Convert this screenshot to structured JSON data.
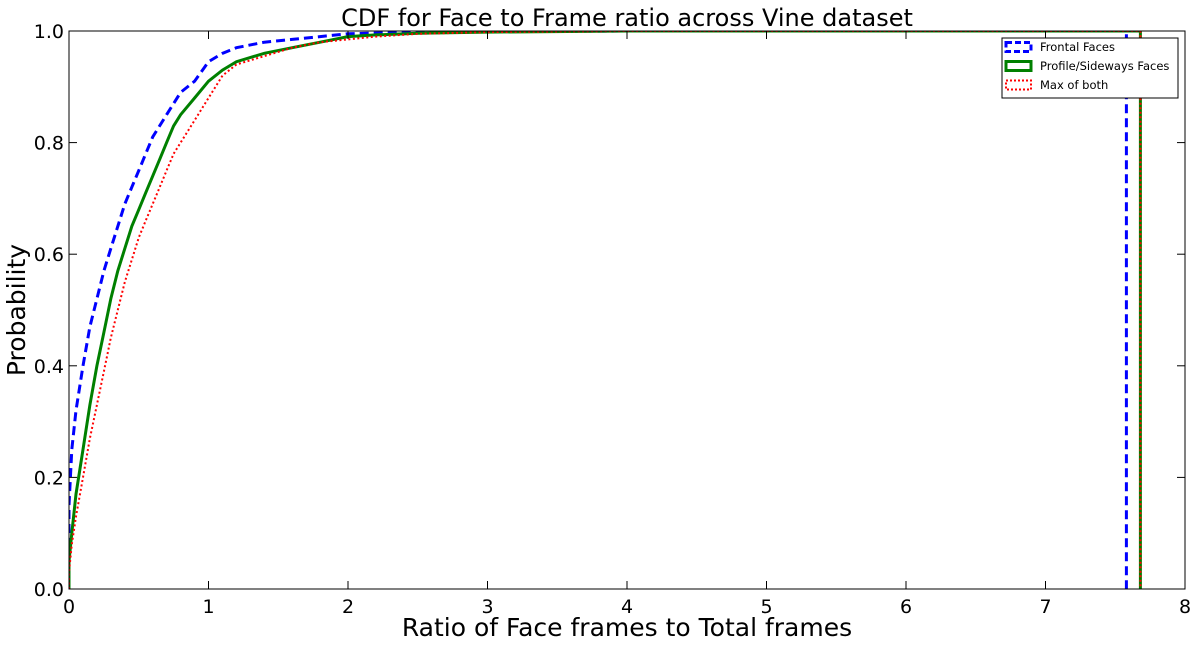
{
  "chart_data": {
    "type": "line",
    "title": "CDF for Face to Frame ratio across  Vine dataset",
    "xlabel": "Ratio of Face frames to Total frames",
    "ylabel": "Probability",
    "xlim": [
      0,
      8
    ],
    "ylim": [
      0,
      1.0
    ],
    "xticks": [
      "0",
      "1",
      "2",
      "3",
      "4",
      "5",
      "6",
      "7",
      "8"
    ],
    "yticks": [
      "0.0",
      "0.2",
      "0.4",
      "0.6",
      "0.8",
      "1.0"
    ],
    "grid": false,
    "legend_position": "top-right",
    "series": [
      {
        "name": "Frontal Faces",
        "color": "#0000ff",
        "style": "dashed",
        "points": [
          [
            0.0,
            0.0
          ],
          [
            0.0,
            0.15
          ],
          [
            0.02,
            0.25
          ],
          [
            0.05,
            0.32
          ],
          [
            0.1,
            0.4
          ],
          [
            0.15,
            0.47
          ],
          [
            0.2,
            0.52
          ],
          [
            0.25,
            0.57
          ],
          [
            0.3,
            0.61
          ],
          [
            0.35,
            0.65
          ],
          [
            0.4,
            0.69
          ],
          [
            0.45,
            0.72
          ],
          [
            0.5,
            0.75
          ],
          [
            0.55,
            0.78
          ],
          [
            0.6,
            0.81
          ],
          [
            0.7,
            0.85
          ],
          [
            0.8,
            0.89
          ],
          [
            0.9,
            0.91
          ],
          [
            1.0,
            0.945
          ],
          [
            1.1,
            0.96
          ],
          [
            1.2,
            0.97
          ],
          [
            1.4,
            0.98
          ],
          [
            1.6,
            0.985
          ],
          [
            1.8,
            0.99
          ],
          [
            2.0,
            0.995
          ],
          [
            2.5,
            0.998
          ],
          [
            3.0,
            0.999
          ],
          [
            4.0,
            1.0
          ],
          [
            7.58,
            1.0
          ],
          [
            7.58,
            0.0
          ]
        ]
      },
      {
        "name": "Profile/Sideways Faces",
        "color": "#008000",
        "style": "solid",
        "points": [
          [
            0.0,
            0.0
          ],
          [
            0.0,
            0.05
          ],
          [
            0.02,
            0.1
          ],
          [
            0.05,
            0.17
          ],
          [
            0.1,
            0.25
          ],
          [
            0.15,
            0.33
          ],
          [
            0.2,
            0.4
          ],
          [
            0.25,
            0.46
          ],
          [
            0.3,
            0.52
          ],
          [
            0.35,
            0.57
          ],
          [
            0.4,
            0.61
          ],
          [
            0.45,
            0.65
          ],
          [
            0.5,
            0.68
          ],
          [
            0.55,
            0.71
          ],
          [
            0.6,
            0.74
          ],
          [
            0.65,
            0.77
          ],
          [
            0.7,
            0.8
          ],
          [
            0.75,
            0.83
          ],
          [
            0.8,
            0.85
          ],
          [
            0.9,
            0.88
          ],
          [
            1.0,
            0.91
          ],
          [
            1.1,
            0.93
          ],
          [
            1.2,
            0.945
          ],
          [
            1.4,
            0.96
          ],
          [
            1.6,
            0.97
          ],
          [
            1.8,
            0.98
          ],
          [
            2.0,
            0.99
          ],
          [
            2.2,
            0.993
          ],
          [
            2.5,
            0.996
          ],
          [
            3.0,
            0.998
          ],
          [
            4.0,
            1.0
          ],
          [
            7.68,
            1.0
          ],
          [
            7.68,
            0.0
          ]
        ]
      },
      {
        "name": "Max of both",
        "color": "#ff0000",
        "style": "dotted",
        "points": [
          [
            0.0,
            0.0
          ],
          [
            0.0,
            0.03
          ],
          [
            0.02,
            0.08
          ],
          [
            0.05,
            0.13
          ],
          [
            0.1,
            0.2
          ],
          [
            0.15,
            0.27
          ],
          [
            0.2,
            0.33
          ],
          [
            0.25,
            0.39
          ],
          [
            0.3,
            0.45
          ],
          [
            0.35,
            0.5
          ],
          [
            0.4,
            0.55
          ],
          [
            0.45,
            0.59
          ],
          [
            0.5,
            0.63
          ],
          [
            0.55,
            0.66
          ],
          [
            0.6,
            0.69
          ],
          [
            0.65,
            0.72
          ],
          [
            0.7,
            0.75
          ],
          [
            0.75,
            0.78
          ],
          [
            0.8,
            0.8
          ],
          [
            0.9,
            0.84
          ],
          [
            1.0,
            0.88
          ],
          [
            1.1,
            0.92
          ],
          [
            1.2,
            0.94
          ],
          [
            1.4,
            0.955
          ],
          [
            1.6,
            0.97
          ],
          [
            1.8,
            0.98
          ],
          [
            2.0,
            0.985
          ],
          [
            2.2,
            0.99
          ],
          [
            2.5,
            0.995
          ],
          [
            3.0,
            0.998
          ],
          [
            4.0,
            1.0
          ],
          [
            7.68,
            1.0
          ],
          [
            7.68,
            0.0
          ]
        ]
      }
    ]
  }
}
